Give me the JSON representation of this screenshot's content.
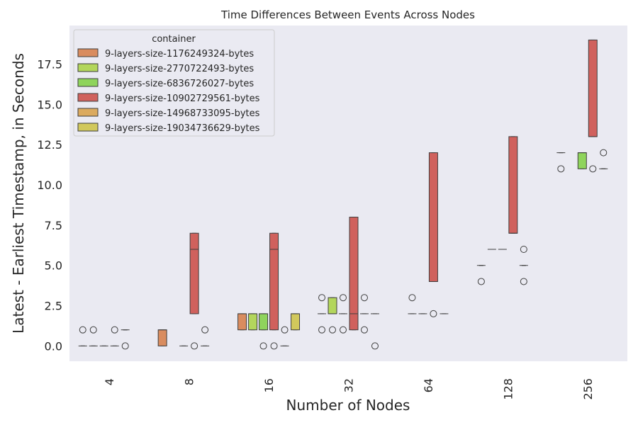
{
  "chart_data": {
    "type": "box",
    "title": "Time Differences Between Events Across Nodes",
    "xlabel": "Number of Nodes",
    "ylabel": "Latest - Earliest Timestamp, in Seconds",
    "ylim": [
      -0.95,
      19.9
    ],
    "yticks": [
      "0.0",
      "2.5",
      "5.0",
      "7.5",
      "10.0",
      "12.5",
      "15.0",
      "17.5"
    ],
    "categories": [
      "4",
      "8",
      "16",
      "32",
      "64",
      "128",
      "256"
    ],
    "legend": {
      "title": "container",
      "placement": "top-left"
    },
    "series": [
      {
        "name": "9-layers-size-1176249324-bytes",
        "color": "#d98c5f",
        "boxes": [
          {
            "q1": 0,
            "median": 0,
            "q3": 0,
            "whislo": 0,
            "whishi": 0,
            "fliers": [
              1
            ]
          },
          {
            "q1": 0,
            "median": 1,
            "q3": 1,
            "whislo": 0,
            "whishi": 1,
            "fliers": []
          },
          {
            "q1": 1,
            "median": 2,
            "q3": 2,
            "whislo": 1,
            "whishi": 2,
            "fliers": []
          },
          {
            "q1": 2,
            "median": 2,
            "q3": 2,
            "whislo": 2,
            "whishi": 2,
            "fliers": [
              3,
              1
            ]
          },
          null,
          {
            "q1": 5,
            "median": 5,
            "q3": 5,
            "whislo": 5,
            "whishi": 5,
            "fliers": [
              4
            ]
          },
          {
            "q1": 12,
            "median": 12,
            "q3": 12,
            "whislo": 12,
            "whishi": 12,
            "fliers": [
              11
            ]
          }
        ]
      },
      {
        "name": "9-layers-size-2770722493-bytes",
        "color": "#b3d65c",
        "boxes": [
          {
            "q1": 0,
            "median": 0,
            "q3": 0,
            "whislo": 0,
            "whishi": 0,
            "fliers": [
              1
            ]
          },
          null,
          {
            "q1": 1,
            "median": 2,
            "q3": 2,
            "whislo": 1,
            "whishi": 2,
            "fliers": []
          },
          {
            "q1": 2,
            "median": 2,
            "q3": 3,
            "whislo": 2,
            "whishi": 3,
            "fliers": [
              1
            ]
          },
          {
            "q1": 2,
            "median": 2,
            "q3": 2,
            "whislo": 2,
            "whishi": 2,
            "fliers": [
              3
            ]
          },
          {
            "q1": 6,
            "median": 6,
            "q3": 6,
            "whislo": 6,
            "whishi": 6,
            "fliers": []
          },
          null
        ]
      },
      {
        "name": "9-layers-size-6836726027-bytes",
        "color": "#8fd45c",
        "boxes": [
          {
            "q1": 0,
            "median": 0,
            "q3": 0,
            "whislo": 0,
            "whishi": 0,
            "fliers": []
          },
          {
            "q1": 0,
            "median": 0,
            "q3": 0,
            "whislo": 0,
            "whishi": 0,
            "fliers": []
          },
          {
            "q1": 1,
            "median": 2,
            "q3": 2,
            "whislo": 1,
            "whishi": 2,
            "fliers": [
              0
            ]
          },
          {
            "q1": 2,
            "median": 2,
            "q3": 2,
            "whislo": 2,
            "whishi": 2,
            "fliers": [
              3,
              1
            ]
          },
          {
            "q1": 2,
            "median": 2,
            "q3": 2,
            "whislo": 2,
            "whishi": 2,
            "fliers": []
          },
          {
            "q1": 6,
            "median": 6,
            "q3": 6,
            "whislo": 6,
            "whishi": 6,
            "fliers": []
          },
          {
            "q1": 11,
            "median": 12,
            "q3": 12,
            "whislo": 11,
            "whishi": 12,
            "fliers": []
          }
        ]
      },
      {
        "name": "9-layers-size-10902729561-bytes",
        "color": "#d0615d",
        "boxes": [
          {
            "q1": 0,
            "median": 0,
            "q3": 0,
            "whislo": 0,
            "whishi": 0,
            "fliers": [
              1
            ]
          },
          {
            "q1": 2,
            "median": 6,
            "q3": 7,
            "whislo": 2,
            "whishi": 7,
            "fliers": [
              0
            ]
          },
          {
            "q1": 1,
            "median": 6,
            "q3": 7,
            "whislo": 1,
            "whishi": 7,
            "fliers": [
              0
            ]
          },
          {
            "q1": 1,
            "median": 2,
            "q3": 8,
            "whislo": 1,
            "whishi": 8,
            "fliers": []
          },
          {
            "q1": 4,
            "median": 4,
            "q3": 12,
            "whislo": 4,
            "whishi": 12,
            "fliers": [
              2
            ]
          },
          {
            "q1": 7,
            "median": 7,
            "q3": 13,
            "whislo": 7,
            "whishi": 13,
            "fliers": []
          },
          {
            "q1": 13,
            "median": 13,
            "q3": 19,
            "whislo": 13,
            "whishi": 19,
            "fliers": [
              11
            ]
          }
        ]
      },
      {
        "name": "9-layers-size-14968733095-bytes",
        "color": "#dbaa5f",
        "boxes": [
          {
            "q1": 1,
            "median": 1,
            "q3": 1,
            "whislo": 1,
            "whishi": 1,
            "fliers": [
              0
            ]
          },
          {
            "q1": 0,
            "median": 0,
            "q3": 0,
            "whislo": 0,
            "whishi": 0,
            "fliers": [
              1
            ]
          },
          {
            "q1": 0,
            "median": 0,
            "q3": 0,
            "whislo": 0,
            "whishi": 0,
            "fliers": [
              1
            ]
          },
          {
            "q1": 2,
            "median": 2,
            "q3": 2,
            "whislo": 2,
            "whishi": 2,
            "fliers": [
              3,
              1
            ]
          },
          {
            "q1": 2,
            "median": 2,
            "q3": 2,
            "whislo": 2,
            "whishi": 2,
            "fliers": []
          },
          {
            "q1": 5,
            "median": 5,
            "q3": 5,
            "whislo": 5,
            "whishi": 5,
            "fliers": [
              6,
              4
            ]
          },
          {
            "q1": 11,
            "median": 11,
            "q3": 11,
            "whislo": 11,
            "whishi": 11,
            "fliers": [
              12
            ]
          }
        ]
      },
      {
        "name": "9-layers-size-19034736629-bytes",
        "color": "#d1c85c",
        "boxes": [
          null,
          null,
          {
            "q1": 1,
            "median": 2,
            "q3": 2,
            "whislo": 1,
            "whishi": 2,
            "fliers": []
          },
          {
            "q1": 2,
            "median": 2,
            "q3": 2,
            "whislo": 2,
            "whishi": 2,
            "fliers": [
              0
            ]
          },
          null,
          null,
          null
        ]
      }
    ]
  }
}
